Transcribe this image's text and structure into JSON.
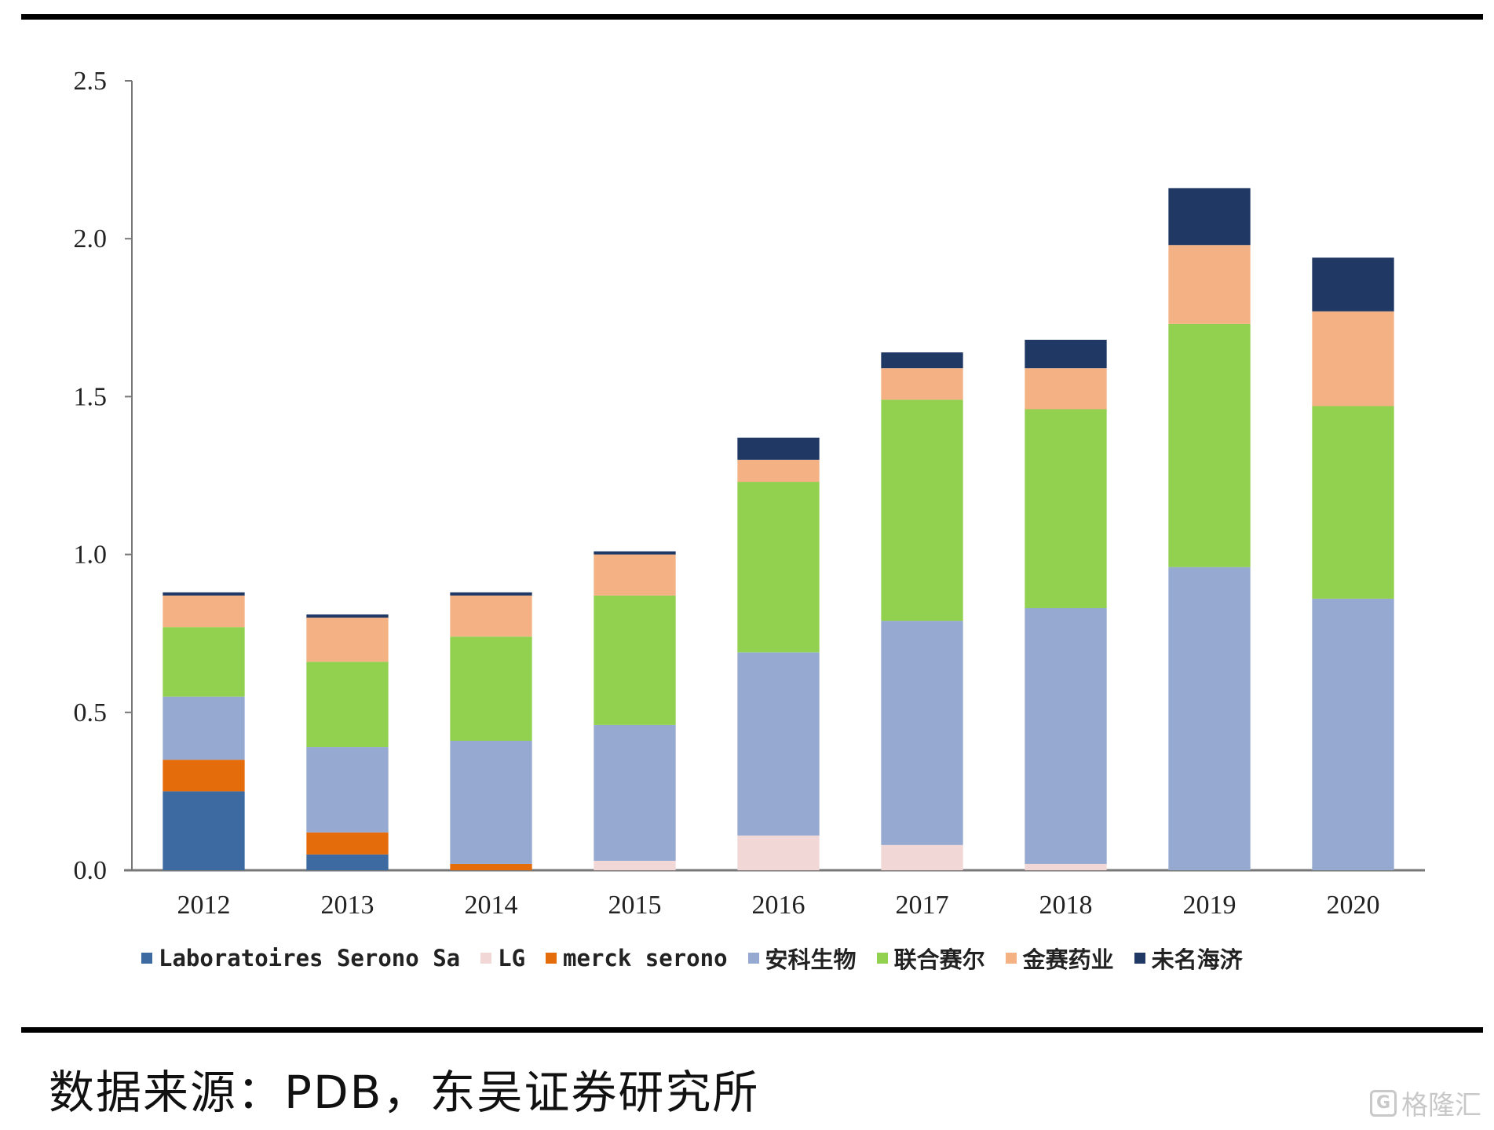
{
  "chart_data": {
    "type": "bar",
    "stacked": true,
    "title": "",
    "xlabel": "",
    "ylabel": "",
    "ylim": [
      0,
      2.5
    ],
    "yticks": [
      "0.0",
      "0.5",
      "1.0",
      "1.5",
      "2.0",
      "2.5"
    ],
    "categories": [
      "2012",
      "2013",
      "2014",
      "2015",
      "2016",
      "2017",
      "2018",
      "2019",
      "2020"
    ],
    "series": [
      {
        "name": "Laboratoires Serono Sa",
        "color": "#3c6aa1",
        "values": [
          0.25,
          0.05,
          0.0,
          0.0,
          0.0,
          0.0,
          0.0,
          0.0,
          0.0
        ]
      },
      {
        "name": "LG",
        "color": "#f2d7d7",
        "values": [
          0.0,
          0.0,
          0.0,
          0.03,
          0.11,
          0.08,
          0.02,
          0.0,
          0.0
        ]
      },
      {
        "name": "merck serono",
        "color": "#e46c0a",
        "values": [
          0.1,
          0.07,
          0.02,
          0.0,
          0.0,
          0.0,
          0.0,
          0.0,
          0.0
        ]
      },
      {
        "name": "安科生物",
        "color": "#95a9d1",
        "values": [
          0.2,
          0.27,
          0.39,
          0.43,
          0.58,
          0.71,
          0.81,
          0.96,
          0.86
        ]
      },
      {
        "name": "联合赛尔",
        "color": "#92d050",
        "values": [
          0.22,
          0.27,
          0.33,
          0.41,
          0.54,
          0.7,
          0.63,
          0.77,
          0.61
        ]
      },
      {
        "name": "金赛药业",
        "color": "#f4b183",
        "values": [
          0.1,
          0.14,
          0.13,
          0.13,
          0.07,
          0.1,
          0.13,
          0.25,
          0.3
        ]
      },
      {
        "name": "未名海济",
        "color": "#1f3864",
        "values": [
          0.01,
          0.01,
          0.01,
          0.01,
          0.07,
          0.05,
          0.09,
          0.18,
          0.17
        ]
      }
    ],
    "legend_position": "bottom"
  },
  "footer": {
    "source": "数据来源：PDB，东吴证券研究所"
  },
  "watermark": {
    "logo_glyph": "G",
    "text": "格隆汇"
  }
}
